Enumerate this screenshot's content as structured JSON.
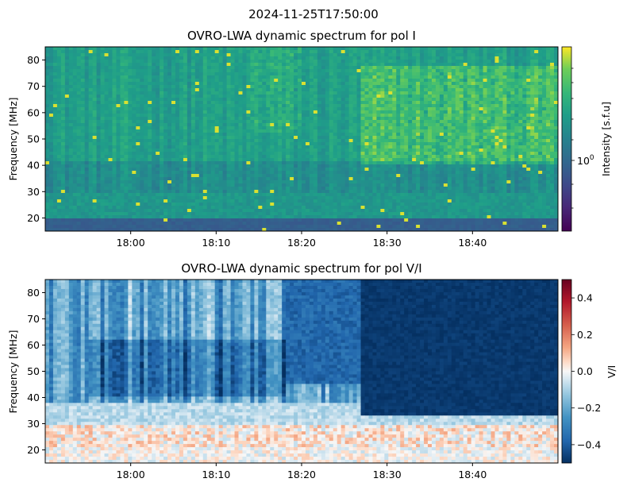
{
  "figure": {
    "suptitle": "2024-11-25T17:50:00"
  },
  "chart_data": [
    {
      "type": "heatmap",
      "title": "OVRO-LWA dynamic spectrum for pol I",
      "xlabel": "",
      "ylabel": "Frequency [MHz]",
      "x_tick_labels": [
        "18:00",
        "18:10",
        "18:20",
        "18:30",
        "18:40"
      ],
      "x_tick_minutes": [
        10,
        20,
        30,
        40,
        50
      ],
      "xlim_minutes_after_17_50": [
        0,
        60
      ],
      "y_ticks": [
        20,
        30,
        40,
        50,
        60,
        70,
        80
      ],
      "ylim": [
        15,
        85
      ],
      "colormap": "viridis",
      "scale": "log",
      "colorbar_label": "Intensity [s.f.u]",
      "colorbar_tick_label": "10^0",
      "colorbar_tick_base": "10",
      "colorbar_tick_exp": "0",
      "features": [
        {
          "description": "bright dark band",
          "freq_range": [
            15,
            20
          ]
        },
        {
          "description": "bright emission patches",
          "time_range": [
            "18:27",
            "18:50"
          ],
          "freq_range": [
            40,
            80
          ]
        }
      ]
    },
    {
      "type": "heatmap",
      "title": "OVRO-LWA dynamic spectrum for pol V/I",
      "xlabel": "",
      "ylabel": "Frequency [MHz]",
      "x_tick_labels": [
        "18:00",
        "18:10",
        "18:20",
        "18:30",
        "18:40"
      ],
      "x_tick_minutes": [
        10,
        20,
        30,
        40,
        50
      ],
      "xlim_minutes_after_17_50": [
        0,
        60
      ],
      "y_ticks": [
        20,
        30,
        40,
        50,
        60,
        70,
        80
      ],
      "ylim": [
        15,
        85
      ],
      "colormap": "RdBu_r",
      "colorbar_label": "V/I",
      "colorbar_range": [
        -0.5,
        0.5
      ],
      "colorbar_ticks": [
        0.4,
        0.2,
        0.0,
        -0.2,
        -0.4
      ],
      "colorbar_tick_labels": [
        "0.4",
        "0.2",
        "0.0",
        "−0.2",
        "−0.4"
      ],
      "features": [
        {
          "description": "strongly negative (dark blue) region",
          "time_range": [
            "18:27",
            "18:50"
          ],
          "freq_range": [
            32,
            85
          ]
        }
      ]
    }
  ]
}
